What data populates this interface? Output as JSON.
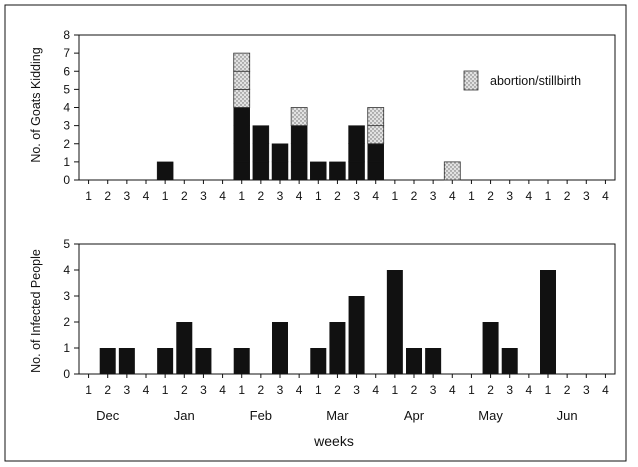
{
  "weeks_axis_title": "weeks",
  "colors": {
    "solid": "#111111",
    "hatched_fill": "#e2e2e2",
    "hatched_dots": "#666666"
  },
  "chart_data": [
    {
      "type": "bar",
      "stacked": true,
      "ylabel": "No. of Goats Kidding",
      "ylim": [
        0,
        8
      ],
      "yticks": [
        0,
        1,
        2,
        3,
        4,
        5,
        6,
        7,
        8
      ],
      "x_tick_labels": [
        "1",
        "2",
        "3",
        "4",
        "1",
        "2",
        "3",
        "4",
        "1",
        "2",
        "3",
        "4",
        "1",
        "2",
        "3",
        "4",
        "1",
        "2",
        "3",
        "4",
        "1",
        "2",
        "3",
        "4",
        "1",
        "2",
        "3",
        "4"
      ],
      "legend": {
        "position": "top-right",
        "entries": [
          "abortion/stillbirth"
        ]
      },
      "series": [
        {
          "style": "solid",
          "values": [
            0,
            0,
            0,
            0,
            1,
            0,
            0,
            0,
            4,
            3,
            2,
            3,
            1,
            1,
            3,
            2,
            0,
            0,
            0,
            0,
            0,
            0,
            0,
            0,
            0,
            0,
            0,
            0
          ]
        },
        {
          "name": "abortion/stillbirth",
          "style": "dotted",
          "values": [
            0,
            0,
            0,
            0,
            0,
            0,
            0,
            0,
            3,
            0,
            0,
            1,
            0,
            0,
            0,
            2,
            0,
            0,
            0,
            1,
            0,
            0,
            0,
            0,
            0,
            0,
            0,
            0
          ]
        }
      ]
    },
    {
      "type": "bar",
      "ylabel": "No. of Infected People",
      "ylim": [
        0,
        5
      ],
      "yticks": [
        0,
        1,
        2,
        3,
        4,
        5
      ],
      "x_tick_labels": [
        "1",
        "2",
        "3",
        "4",
        "1",
        "2",
        "3",
        "4",
        "1",
        "2",
        "3",
        "4",
        "1",
        "2",
        "3",
        "4",
        "1",
        "2",
        "3",
        "4",
        "1",
        "2",
        "3",
        "4",
        "1",
        "2",
        "3",
        "4"
      ],
      "months": [
        "Dec",
        "Jan",
        "Feb",
        "Mar",
        "Apr",
        "May",
        "Jun"
      ],
      "values": [
        0,
        1,
        1,
        0,
        1,
        2,
        1,
        0,
        1,
        0,
        2,
        0,
        1,
        2,
        3,
        0,
        4,
        1,
        1,
        0,
        0,
        2,
        1,
        0,
        4,
        0,
        0,
        0
      ]
    }
  ]
}
